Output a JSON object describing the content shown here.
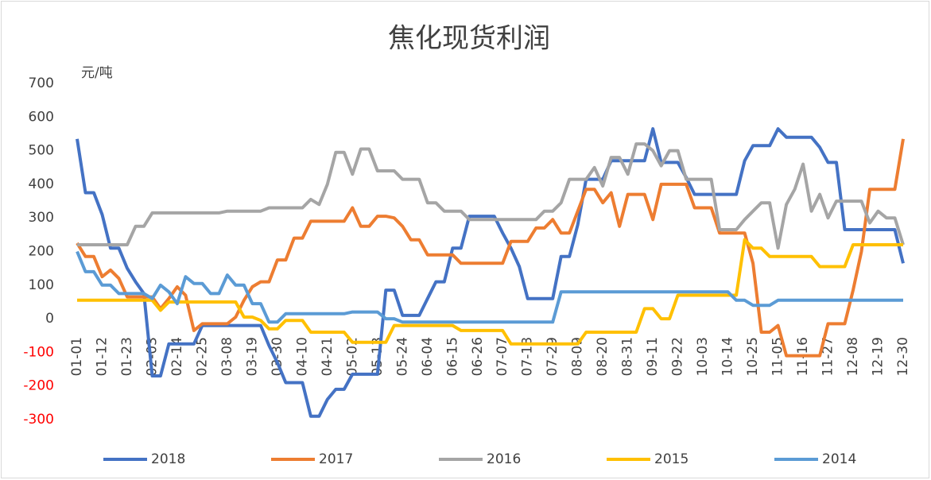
{
  "chart_data": {
    "type": "line",
    "title": "焦化现货利润",
    "y_label": "元/吨",
    "categories": [
      "01-01",
      null,
      null,
      "01-12",
      null,
      null,
      "01-23",
      null,
      null,
      "02-03",
      null,
      null,
      "02-14",
      null,
      null,
      "02-25",
      null,
      null,
      "03-08",
      null,
      null,
      "03-19",
      null,
      null,
      "03-30",
      null,
      null,
      "04-10",
      null,
      null,
      "04-21",
      null,
      null,
      "05-02",
      null,
      null,
      "05-13",
      null,
      null,
      "05-24",
      null,
      null,
      "06-04",
      null,
      null,
      "06-15",
      null,
      null,
      "06-26",
      null,
      null,
      "07-07",
      null,
      null,
      "07-18",
      null,
      null,
      "07-29",
      null,
      null,
      "08-09",
      null,
      null,
      "08-20",
      null,
      null,
      "08-31",
      null,
      null,
      "09-11",
      null,
      null,
      "09-22",
      null,
      null,
      "10-03",
      null,
      null,
      "10-14",
      null,
      null,
      "10-25",
      null,
      null,
      "11-05",
      null,
      null,
      "11-16",
      null,
      null,
      "11-27",
      null,
      null,
      "12-08",
      null,
      null,
      "12-19",
      null,
      null,
      "12-30"
    ],
    "series": [
      {
        "name": "2018",
        "color": "#4472c4",
        "values": [
          535,
          375,
          375,
          310,
          210,
          210,
          150,
          110,
          75,
          -170,
          -170,
          -75,
          -75,
          -75,
          -75,
          -20,
          -20,
          -20,
          -20,
          -20,
          -20,
          -20,
          -20,
          -80,
          -130,
          -190,
          -190,
          -190,
          -290,
          -290,
          -240,
          -210,
          -210,
          -165,
          -165,
          -165,
          -165,
          85,
          85,
          10,
          10,
          10,
          60,
          110,
          110,
          210,
          210,
          305,
          305,
          305,
          305,
          255,
          210,
          155,
          60,
          60,
          60,
          60,
          185,
          185,
          280,
          415,
          415,
          415,
          470,
          470,
          470,
          470,
          470,
          565,
          465,
          465,
          465,
          420,
          370,
          370,
          370,
          370,
          370,
          370,
          470,
          515,
          515,
          515,
          565,
          540,
          540,
          540,
          540,
          510,
          465,
          465,
          265,
          265,
          265,
          265,
          265,
          265,
          265,
          165
        ]
      },
      {
        "name": "2017",
        "color": "#ed7d31",
        "values": [
          225,
          185,
          185,
          125,
          145,
          120,
          65,
          65,
          65,
          65,
          30,
          60,
          95,
          70,
          -35,
          -15,
          -15,
          -15,
          -15,
          5,
          55,
          95,
          110,
          110,
          175,
          175,
          240,
          240,
          290,
          290,
          290,
          290,
          290,
          330,
          275,
          275,
          305,
          305,
          300,
          275,
          235,
          235,
          190,
          190,
          190,
          190,
          165,
          165,
          165,
          165,
          165,
          165,
          230,
          230,
          230,
          270,
          270,
          295,
          255,
          255,
          320,
          385,
          385,
          345,
          375,
          275,
          370,
          370,
          370,
          295,
          400,
          400,
          400,
          400,
          330,
          330,
          330,
          255,
          255,
          255,
          255,
          165,
          -40,
          -40,
          -20,
          -110,
          -110,
          -110,
          -110,
          -110,
          -15,
          -15,
          -15,
          85,
          200,
          385,
          385,
          385,
          385,
          535
        ]
      },
      {
        "name": "2016",
        "color": "#a5a5a5",
        "values": [
          220,
          220,
          220,
          220,
          220,
          220,
          220,
          275,
          275,
          315,
          315,
          315,
          315,
          315,
          315,
          315,
          315,
          315,
          320,
          320,
          320,
          320,
          320,
          330,
          330,
          330,
          330,
          330,
          355,
          340,
          400,
          495,
          495,
          430,
          505,
          505,
          440,
          440,
          440,
          415,
          415,
          415,
          345,
          345,
          320,
          320,
          320,
          295,
          295,
          295,
          295,
          295,
          295,
          295,
          295,
          295,
          320,
          320,
          345,
          415,
          415,
          415,
          450,
          395,
          480,
          480,
          430,
          520,
          520,
          500,
          455,
          500,
          500,
          415,
          415,
          415,
          415,
          265,
          265,
          265,
          295,
          320,
          345,
          345,
          210,
          340,
          385,
          460,
          320,
          370,
          300,
          350,
          350,
          350,
          350,
          285,
          320,
          300,
          300,
          220
        ]
      },
      {
        "name": "2015",
        "color": "#ffc000",
        "values": [
          55,
          55,
          55,
          55,
          55,
          55,
          55,
          55,
          55,
          55,
          25,
          50,
          50,
          50,
          50,
          50,
          50,
          50,
          50,
          50,
          5,
          5,
          -5,
          -30,
          -30,
          -5,
          -5,
          -5,
          -40,
          -40,
          -40,
          -40,
          -40,
          -70,
          -70,
          -70,
          -70,
          -70,
          -20,
          -20,
          -20,
          -20,
          -20,
          -20,
          -20,
          -20,
          -35,
          -35,
          -35,
          -35,
          -35,
          -35,
          -75,
          -75,
          -75,
          -75,
          -75,
          -75,
          -75,
          -75,
          -75,
          -40,
          -40,
          -40,
          -40,
          -40,
          -40,
          -40,
          30,
          30,
          0,
          0,
          70,
          70,
          70,
          70,
          70,
          70,
          70,
          70,
          235,
          210,
          210,
          185,
          185,
          185,
          185,
          185,
          185,
          155,
          155,
          155,
          155,
          220,
          220,
          220,
          220,
          220,
          220,
          220
        ]
      },
      {
        "name": "2014",
        "color": "#5b9bd5",
        "values": [
          200,
          140,
          140,
          100,
          100,
          75,
          75,
          75,
          75,
          60,
          100,
          80,
          45,
          125,
          105,
          105,
          75,
          75,
          130,
          100,
          100,
          45,
          45,
          -10,
          -10,
          15,
          15,
          15,
          15,
          15,
          15,
          15,
          15,
          20,
          20,
          20,
          20,
          0,
          0,
          -10,
          -10,
          -10,
          -10,
          -10,
          -10,
          -10,
          -10,
          -10,
          -10,
          -10,
          -10,
          -10,
          -10,
          -10,
          -10,
          -10,
          -10,
          -10,
          80,
          80,
          80,
          80,
          80,
          80,
          80,
          80,
          80,
          80,
          80,
          80,
          80,
          80,
          80,
          80,
          80,
          80,
          80,
          80,
          80,
          55,
          55,
          40,
          40,
          40,
          55,
          55,
          55,
          55,
          55,
          55,
          55,
          55,
          55,
          55,
          55,
          55,
          55,
          55,
          55,
          55
        ]
      }
    ],
    "ylim": [
      -300,
      700
    ],
    "yticks": [
      -300,
      -200,
      -100,
      0,
      100,
      200,
      300,
      400,
      500,
      600,
      700
    ],
    "negative_tick_color": "#ff0000",
    "grid": false,
    "legend": "bottom"
  }
}
